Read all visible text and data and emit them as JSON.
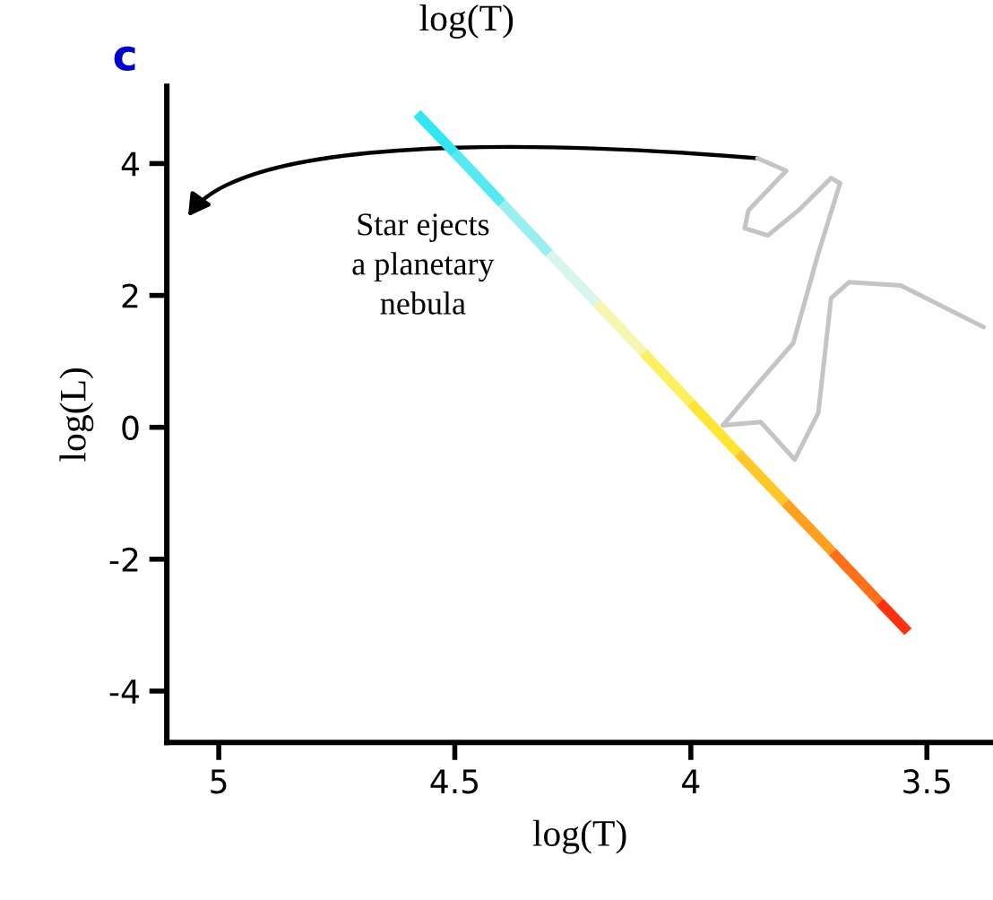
{
  "chart_data": {
    "type": "line",
    "xlabel": "log(T)",
    "ylabel": "log(L)",
    "annotations": [
      "log(T)",
      "c",
      "Star ejects\na planetary\nnebula"
    ],
    "xlim": [
      5.11,
      3.36
    ],
    "xticks": [
      5,
      4.5,
      4,
      3.5
    ],
    "ylim": [
      -4.78,
      5.17
    ],
    "yticks": [
      -4,
      -2,
      0,
      2,
      4
    ],
    "grid": false,
    "legend": false,
    "series": [
      {
        "x": [
          4.58,
          4.5
        ],
        "values": [
          4.76,
          4.16
        ],
        "color": "#33e6f0"
      },
      {
        "x": [
          4.5,
          4.4
        ],
        "values": [
          4.16,
          3.4
        ],
        "color": "#55e9f0"
      },
      {
        "x": [
          4.4,
          4.3
        ],
        "values": [
          3.4,
          2.64
        ],
        "color": "#99eff0"
      },
      {
        "x": [
          4.3,
          4.2
        ],
        "values": [
          2.64,
          1.89
        ],
        "color": "#d8f6ee"
      },
      {
        "x": [
          4.2,
          4.1
        ],
        "values": [
          1.89,
          1.13
        ],
        "color": "#f6f6b0"
      },
      {
        "x": [
          4.1,
          4.0
        ],
        "values": [
          1.13,
          0.37
        ],
        "color": "#fbf060"
      },
      {
        "x": [
          4.0,
          3.9
        ],
        "values": [
          0.37,
          -0.39
        ],
        "color": "#ffe433"
      },
      {
        "x": [
          3.9,
          3.8
        ],
        "values": [
          -0.39,
          -1.14
        ],
        "color": "#ffc828"
      },
      {
        "x": [
          3.8,
          3.7
        ],
        "values": [
          -1.14,
          -1.89
        ],
        "color": "#ffa020"
      },
      {
        "x": [
          3.7,
          3.6
        ],
        "values": [
          -1.89,
          -2.65
        ],
        "color": "#ff7018"
      },
      {
        "x": [
          3.6,
          3.54
        ],
        "values": [
          -2.65,
          -3.1
        ],
        "color": "#ff3010"
      },
      {
        "x": [
          3.932,
          3.852,
          3.783,
          3.73,
          3.684,
          3.703,
          3.772,
          3.837,
          3.886,
          3.878,
          3.798,
          3.859
        ],
        "values": [
          0.03,
          0.71,
          1.28,
          2.64,
          3.7,
          3.78,
          3.29,
          2.91,
          3.02,
          3.29,
          3.89,
          4.08
        ],
        "color": "#c4c4c4"
      },
      {
        "x": [
          3.932,
          3.852,
          3.78,
          3.73,
          3.703,
          3.665,
          3.555,
          3.38
        ],
        "values": [
          0.03,
          0.08,
          -0.49,
          0.22,
          1.96,
          2.2,
          2.15,
          1.52
        ],
        "color": "#c4c4c4"
      }
    ]
  }
}
